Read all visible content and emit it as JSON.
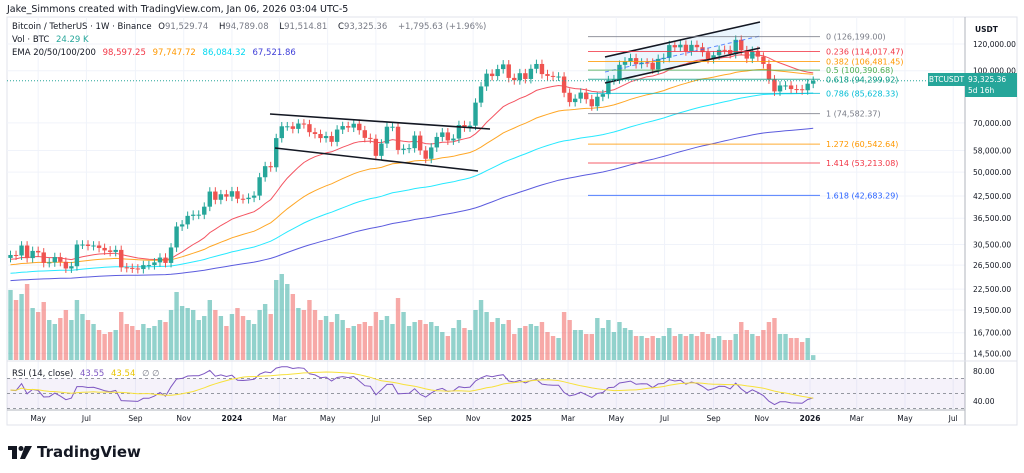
{
  "credit": "Jake_Simmons created with TradingView.com, Jan 06, 2026 03:04 UTC-5",
  "legend": {
    "symbol": "Bitcoin / TetherUS · 1W · Binance",
    "open_label": "O",
    "open": "91,529.74",
    "high_label": "H",
    "high": "94,789.08",
    "low_label": "L",
    "low": "91,514.81",
    "close_label": "C",
    "close": "93,325.36",
    "change": "+1,795.63 (+1.96%)",
    "vol_label": "Vol · BTC",
    "vol": "24.29 K",
    "ema_label": "EMA 20/50/100/200",
    "ema_values": [
      "98,597.25",
      "97,747.72",
      "86,084.32",
      "67,521.86"
    ],
    "rsi_label": "RSI (14, close)",
    "rsi": "43.55",
    "rsi_ma": "43.54"
  },
  "colors": {
    "up": "#26a69a",
    "down": "#ef5350",
    "ema": [
      "#f23645",
      "#ff9800",
      "#00e5ff",
      "#3f3fd8"
    ],
    "rsi": "#7e57c2",
    "rsi_ma": "#f7e13b"
  },
  "price_tag": {
    "symbol": "BTCUSDT",
    "price": "93,325.36",
    "countdown": "5d 16h"
  },
  "logo": "TradingView",
  "chart_data": {
    "type": "candlestick",
    "interval": "1W",
    "first_week": "2023-03-27",
    "currency": "USDT",
    "yscale": "log",
    "closes_k": [
      28.4,
      28.3,
      30.3,
      27.8,
      29.2,
      28.9,
      26.9,
      27.0,
      28.0,
      27.1,
      25.9,
      26.3,
      30.5,
      30.5,
      30.2,
      30.3,
      29.8,
      29.3,
      29.0,
      29.4,
      26.1,
      26.0,
      25.9,
      25.8,
      26.5,
      26.5,
      27.0,
      27.9,
      26.9,
      29.9,
      34.5,
      35.0,
      37.1,
      37.4,
      37.4,
      39.5,
      43.8,
      41.4,
      43.0,
      42.3,
      43.9,
      41.7,
      41.6,
      42.0,
      42.6,
      48.3,
      52.1,
      51.7,
      63.1,
      68.4,
      68.4,
      67.2,
      69.7,
      69.4,
      65.7,
      64.9,
      63.1,
      64.0,
      61.5,
      66.9,
      68.5,
      67.8,
      69.6,
      66.6,
      63.2,
      62.8,
      55.9,
      60.8,
      68.2,
      68.2,
      58.2,
      58.7,
      58.9,
      64.2,
      58.0,
      54.8,
      59.2,
      63.6,
      65.6,
      62.1,
      62.9,
      69.0,
      67.9,
      68.7,
      80.4,
      89.8,
      98.0,
      96.4,
      101.1,
      104.4,
      95.2,
      93.7,
      98.3,
      94.5,
      101.3,
      104.7,
      97.7,
      96.5,
      96.1,
      96.1,
      86.0,
      80.7,
      82.6,
      86.1,
      82.3,
      78.4,
      83.7,
      85.2,
      93.7,
      94.3,
      104.1,
      106.5,
      109.0,
      104.6,
      105.7,
      105.6,
      100.9,
      108.4,
      109.2,
      119.1,
      117.3,
      119.4,
      114.2,
      119.3,
      117.4,
      113.5,
      108.3,
      111.1,
      115.3,
      115.2,
      112.1,
      123.5,
      115.0,
      108.6,
      114.5,
      110.1,
      104.7,
      94.2,
      86.8,
      90.4,
      90.4,
      88.2,
      88.1,
      87.5,
      91.5,
      93.33
    ],
    "volumes_k": [
      350,
      300,
      330,
      380,
      260,
      240,
      290,
      200,
      180,
      210,
      250,
      200,
      300,
      230,
      200,
      180,
      150,
      130,
      140,
      150,
      240,
      180,
      170,
      150,
      180,
      160,
      170,
      200,
      190,
      250,
      340,
      270,
      260,
      250,
      200,
      220,
      300,
      250,
      220,
      170,
      230,
      260,
      220,
      200,
      180,
      250,
      280,
      230,
      400,
      430,
      380,
      330,
      260,
      250,
      300,
      250,
      200,
      220,
      190,
      230,
      200,
      160,
      170,
      180,
      190,
      170,
      240,
      200,
      220,
      180,
      310,
      240,
      170,
      190,
      200,
      180,
      190,
      170,
      140,
      120,
      160,
      200,
      160,
      150,
      250,
      300,
      240,
      190,
      210,
      180,
      200,
      130,
      160,
      170,
      180,
      170,
      190,
      140,
      120,
      110,
      240,
      200,
      150,
      150,
      130,
      130,
      210,
      160,
      200,
      140,
      190,
      160,
      150,
      120,
      120,
      110,
      120,
      110,
      120,
      160,
      120,
      130,
      120,
      130,
      120,
      140,
      130,
      110,
      120,
      100,
      100,
      130,
      190,
      150,
      130,
      120,
      150,
      190,
      210,
      130,
      130,
      110,
      110,
      90,
      110,
      24.29
    ],
    "price_ticks": [
      "120,000.00",
      "100,000.00",
      "70,000.00",
      "58,000.00",
      "50,000.00",
      "42,500.00",
      "36,500.00",
      "30,500.00",
      "26,500.00",
      "22,500.00",
      "19,500.00",
      "16,700.00",
      "14,500.00"
    ],
    "price_tick_values": [
      120000,
      100000,
      70000,
      58000,
      50000,
      42500,
      36500,
      30500,
      26500,
      22500,
      19500,
      16700,
      14500
    ],
    "rsi_ticks": [
      "80.00",
      "40.00"
    ],
    "time_ticks": [
      "May",
      "Jul",
      "Sep",
      "Nov",
      "2024",
      "Mar",
      "May",
      "Jul",
      "Sep",
      "Nov",
      "2025",
      "Mar",
      "May",
      "Jul",
      "Sep",
      "Nov",
      "2026",
      "Mar",
      "May",
      "Jul"
    ],
    "time_tick_dates": [
      "2023-05-01",
      "2023-07-01",
      "2023-09-01",
      "2023-11-01",
      "2024-01-01",
      "2024-03-01",
      "2024-05-01",
      "2024-07-01",
      "2024-09-01",
      "2024-11-01",
      "2025-01-01",
      "2025-03-01",
      "2025-05-01",
      "2025-07-01",
      "2025-09-01",
      "2025-11-01",
      "2026-01-01",
      "2026-03-01",
      "2026-05-01",
      "2026-07-01"
    ],
    "fib_levels": [
      {
        "label": "0 (126,199.00)",
        "price": 126199,
        "color": "#787b86"
      },
      {
        "label": "0.236 (114,017.47)",
        "price": 114017.47,
        "color": "#f23645"
      },
      {
        "label": "0.382 (106,481.45)",
        "price": 106481.45,
        "color": "#ff9800"
      },
      {
        "label": "0.5 (100,390.68)",
        "price": 100390.68,
        "color": "#4caf50"
      },
      {
        "label": "0.618 (94,299.92)",
        "price": 94299.92,
        "color": "#089981"
      },
      {
        "label": "0.786 (85,628.33)",
        "price": 85628.33,
        "color": "#00bcd4"
      },
      {
        "label": "1 (74,582.37)",
        "price": 74582.37,
        "color": "#787b86"
      },
      {
        "label": "1.272 (60,542.64)",
        "price": 60542.64,
        "color": "#ff9800"
      },
      {
        "label": "1.414 (53,213.08)",
        "price": 53213.08,
        "color": "#f23645"
      },
      {
        "label": "1.618 (42,683.29)",
        "price": 42683.29,
        "color": "#2962ff"
      }
    ]
  }
}
